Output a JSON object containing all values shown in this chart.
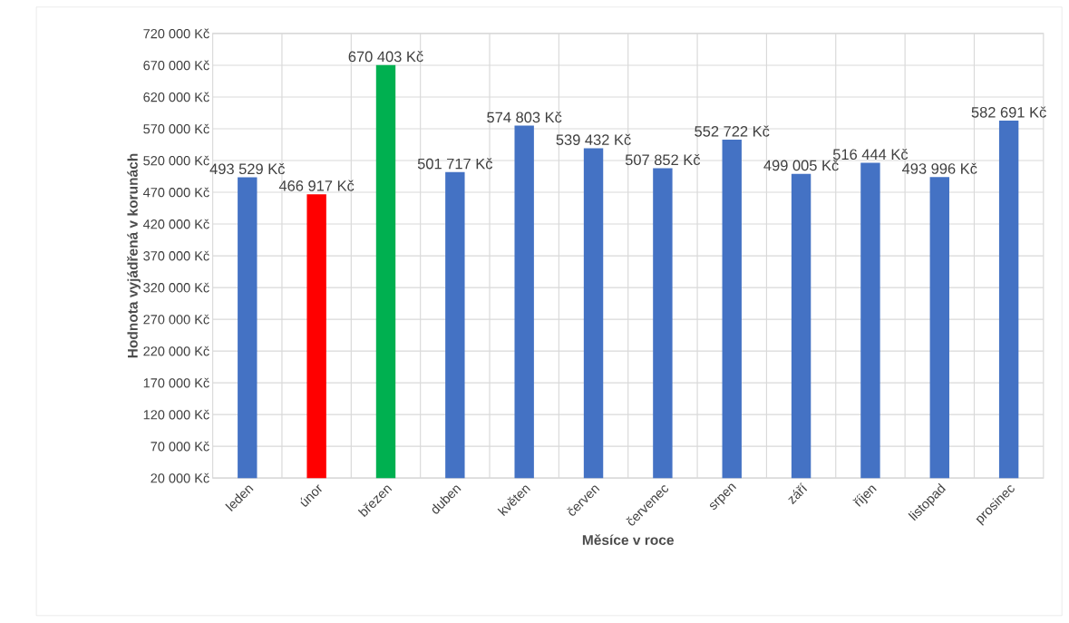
{
  "chart_data": {
    "type": "bar",
    "xlabel": "Měsíce v roce",
    "ylabel": "Hodnota vyjádřená v korunách",
    "categories": [
      "leden",
      "únor",
      "březen",
      "duben",
      "květen",
      "červen",
      "červenec",
      "srpen",
      "září",
      "říjen",
      "listopad",
      "prosinec"
    ],
    "values": [
      493529,
      466917,
      670403,
      501717,
      574803,
      539432,
      507852,
      552722,
      499005,
      516444,
      493996,
      582691
    ],
    "value_labels": [
      "493 529 Kč",
      "466 917 Kč",
      "670 403 Kč",
      "501 717 Kč",
      "574 803 Kč",
      "539 432 Kč",
      "507 852 Kč",
      "552 722 Kč",
      "499 005 Kč",
      "516 444 Kč",
      "493 996 Kč",
      "582 691 Kč"
    ],
    "colors": [
      "#4472c4",
      "#ff0000",
      "#00b050",
      "#4472c4",
      "#4472c4",
      "#4472c4",
      "#4472c4",
      "#4472c4",
      "#4472c4",
      "#4472c4",
      "#4472c4",
      "#4472c4"
    ],
    "ylim": [
      20000,
      720000
    ],
    "yticks": [
      {
        "value": 20000,
        "label": "20 000 Kč"
      },
      {
        "value": 70000,
        "label": "70 000 Kč"
      },
      {
        "value": 120000,
        "label": "120 000 Kč"
      },
      {
        "value": 170000,
        "label": "170 000 Kč"
      },
      {
        "value": 220000,
        "label": "220 000 Kč"
      },
      {
        "value": 270000,
        "label": "270 000 Kč"
      },
      {
        "value": 320000,
        "label": "320 000 Kč"
      },
      {
        "value": 370000,
        "label": "370 000 Kč"
      },
      {
        "value": 420000,
        "label": "420 000 Kč"
      },
      {
        "value": 470000,
        "label": "470 000 Kč"
      },
      {
        "value": 520000,
        "label": "520 000 Kč"
      },
      {
        "value": 570000,
        "label": "570 000 Kč"
      },
      {
        "value": 620000,
        "label": "620 000 Kč"
      },
      {
        "value": 670000,
        "label": "670 000 Kč"
      },
      {
        "value": 720000,
        "label": "720 000 Kč"
      }
    ],
    "grid": true
  }
}
